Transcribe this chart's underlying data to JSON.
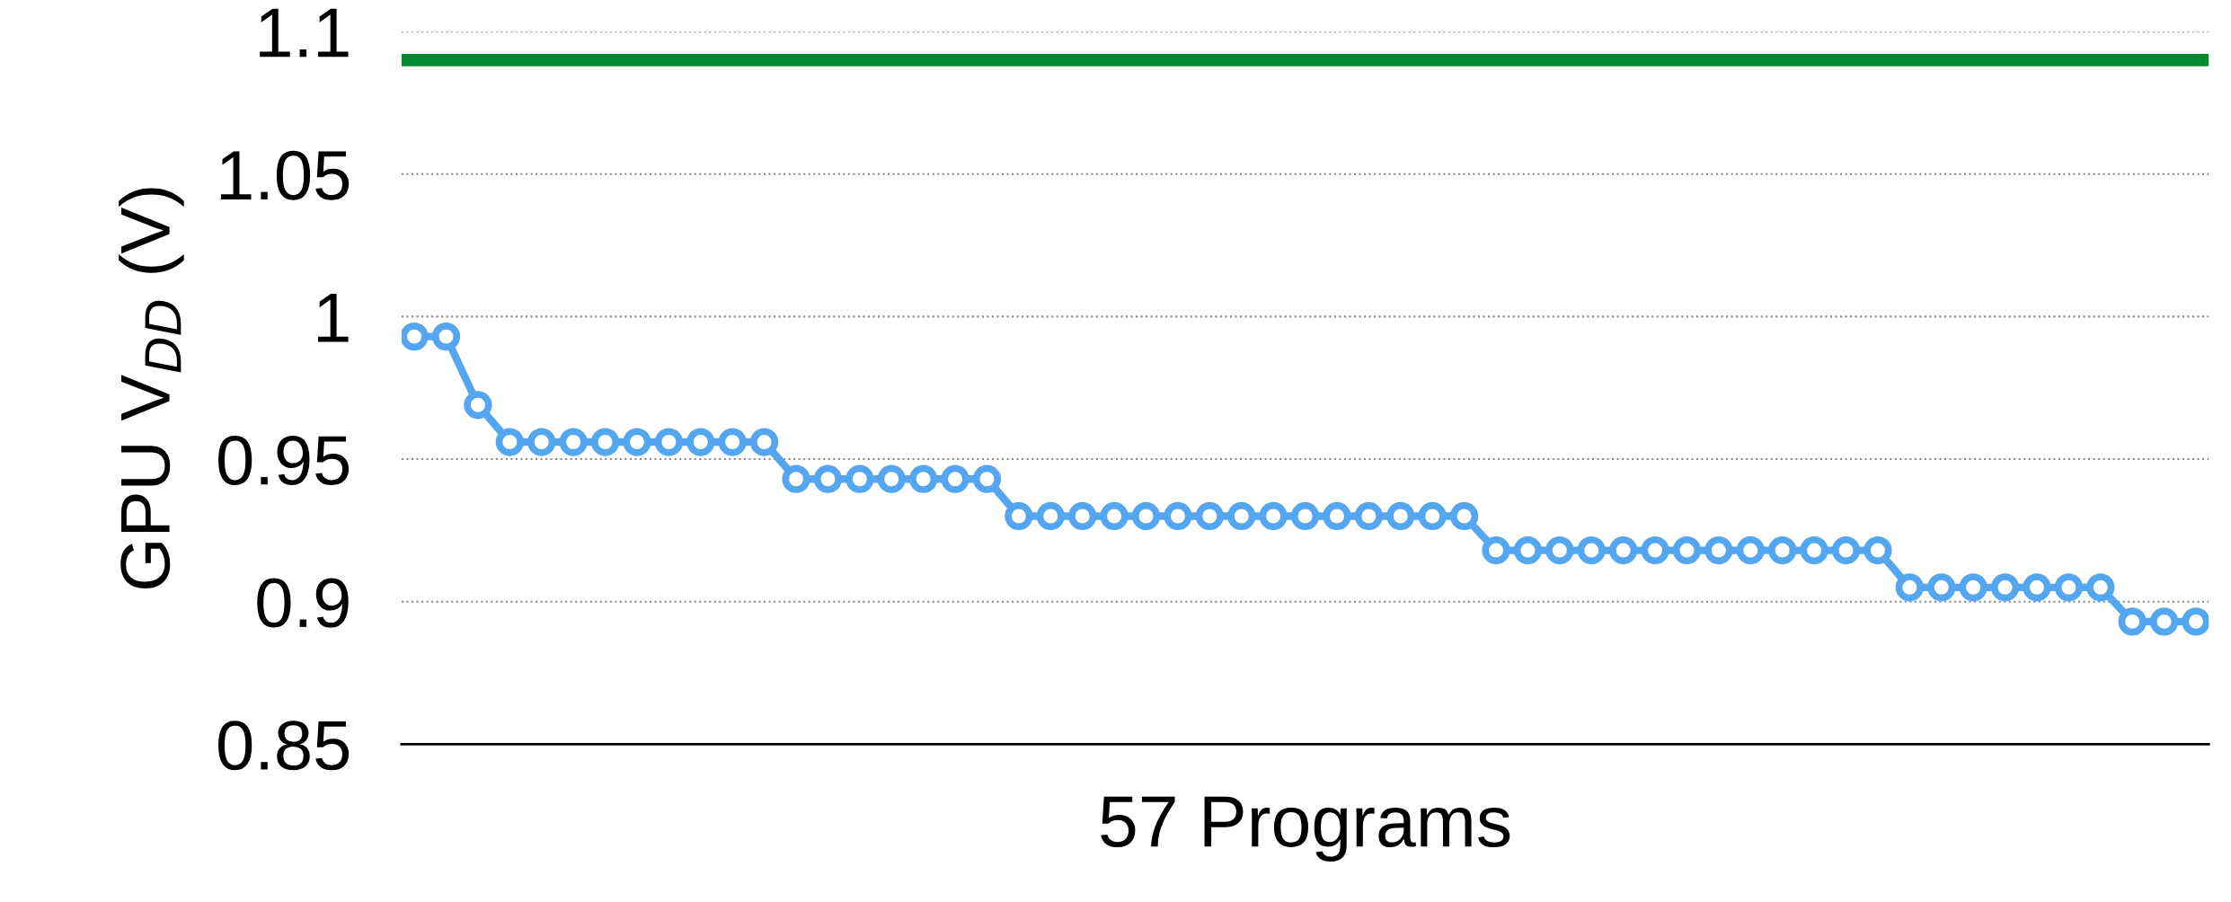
{
  "chart_data": {
    "type": "line",
    "xlabel": "57 Programs",
    "ylabel": "GPU V$_{DD}$ (V)",
    "categories": [
      null,
      null,
      null,
      null,
      null,
      null,
      null,
      null,
      null,
      null,
      null,
      null,
      null,
      null,
      null,
      null,
      null,
      null,
      null,
      null,
      null,
      null,
      null,
      null,
      null,
      null,
      null,
      null,
      null,
      null,
      null,
      null,
      null,
      null,
      null,
      null,
      null,
      null,
      null,
      null,
      null,
      null,
      null,
      null,
      null,
      null,
      null,
      null,
      null,
      null,
      null,
      null,
      null,
      null,
      null,
      null,
      null
    ],
    "series": [
      {
        "color": "#55a6f0",
        "values": [
          0.993,
          0.993,
          0.969,
          0.956,
          0.956,
          0.956,
          0.956,
          0.956,
          0.956,
          0.956,
          0.956,
          0.956,
          0.943,
          0.943,
          0.943,
          0.943,
          0.943,
          0.943,
          0.943,
          0.93,
          0.93,
          0.93,
          0.93,
          0.93,
          0.93,
          0.93,
          0.93,
          0.93,
          0.93,
          0.93,
          0.93,
          0.93,
          0.93,
          0.93,
          0.918,
          0.918,
          0.918,
          0.918,
          0.918,
          0.918,
          0.918,
          0.918,
          0.918,
          0.918,
          0.918,
          0.918,
          0.918,
          0.905,
          0.905,
          0.905,
          0.905,
          0.905,
          0.905,
          0.905,
          0.893,
          0.893,
          0.893
        ]
      }
    ],
    "ylim": [
      0.85,
      1.1
    ],
    "yticks": [
      {
        "value": 0.85,
        "label": "0.85"
      },
      {
        "value": 0.9,
        "label": "0.9"
      },
      {
        "value": 0.95,
        "label": "0.95"
      },
      {
        "value": 1.0,
        "label": "1"
      },
      {
        "value": 1.05,
        "label": "1.05"
      },
      {
        "value": 1.1,
        "label": "1.1"
      }
    ],
    "ref_lines": [
      {
        "axis": "y",
        "value": 1.09,
        "color": "#048a2e",
        "line_style": "solid"
      }
    ],
    "grid": "y",
    "marker": "circle",
    "line_style": "solid",
    "legend": false
  }
}
